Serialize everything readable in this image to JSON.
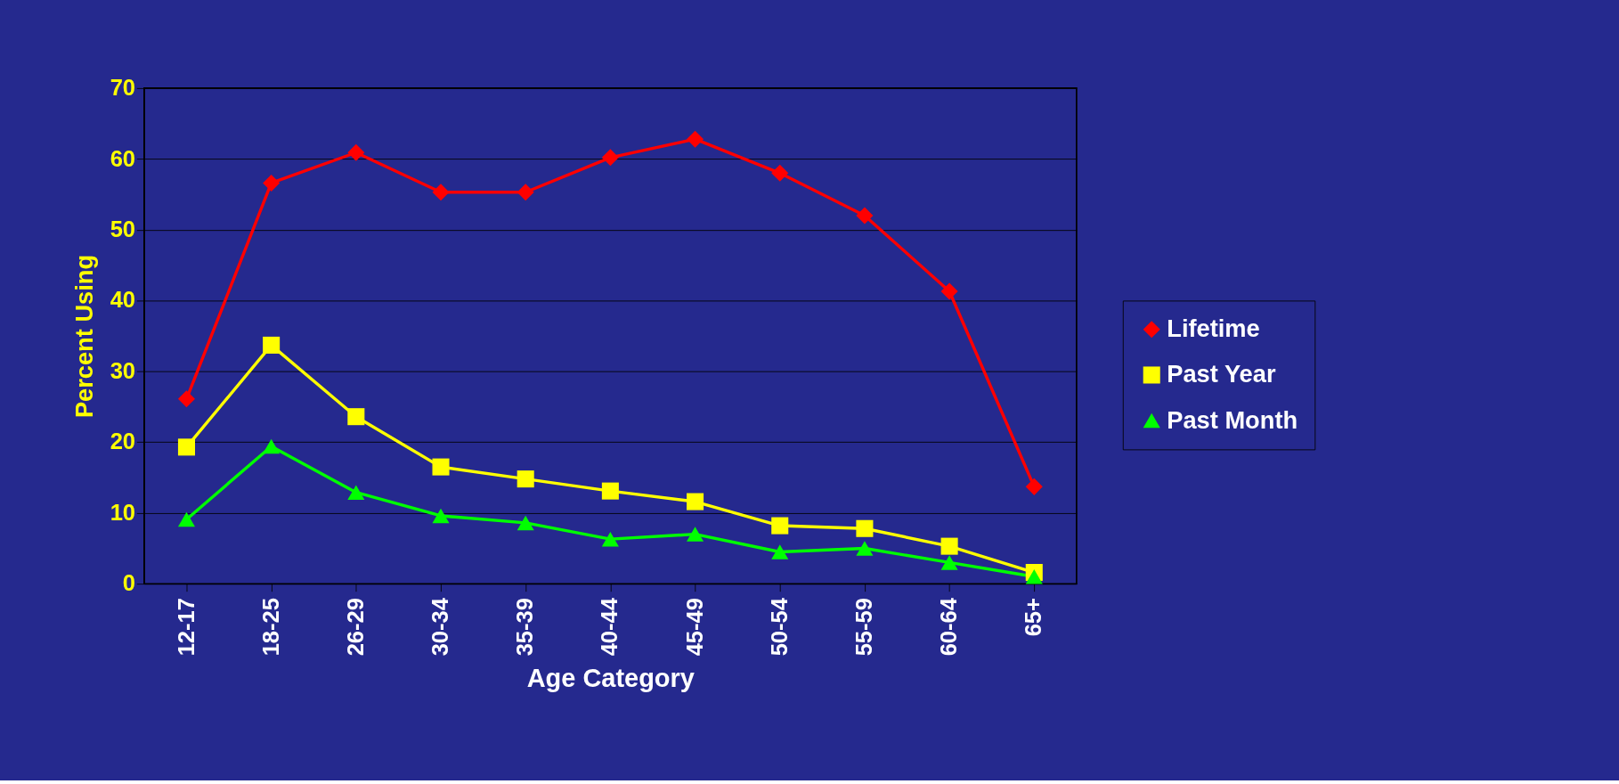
{
  "chart_data": {
    "type": "line",
    "xlabel": "Age Category",
    "ylabel": "Percent Using",
    "categories": [
      "12-17",
      "18-25",
      "26-29",
      "30-34",
      "35-39",
      "40-44",
      "45-49",
      "50-54",
      "55-59",
      "60-64",
      "65+"
    ],
    "ylim": [
      0,
      70
    ],
    "yticks": [
      0,
      10,
      20,
      30,
      40,
      50,
      60,
      70
    ],
    "grid": "y",
    "legend": "right",
    "series": [
      {
        "name": "Lifetime",
        "color": "#ff0000",
        "marker": "diamond",
        "values": [
          26.1,
          56.6,
          60.9,
          55.3,
          55.3,
          60.2,
          62.8,
          58.0,
          52.0,
          41.3,
          13.7
        ]
      },
      {
        "name": "Past Year",
        "color": "#ffff00",
        "marker": "square",
        "values": [
          19.3,
          33.7,
          23.6,
          16.5,
          14.8,
          13.1,
          11.6,
          8.2,
          7.8,
          5.3,
          1.6
        ]
      },
      {
        "name": "Past Month",
        "color": "#00ff00",
        "marker": "triangle",
        "values": [
          9.1,
          19.4,
          12.9,
          9.6,
          8.6,
          6.3,
          7.0,
          4.5,
          5.0,
          3.0,
          1.0
        ]
      }
    ]
  }
}
